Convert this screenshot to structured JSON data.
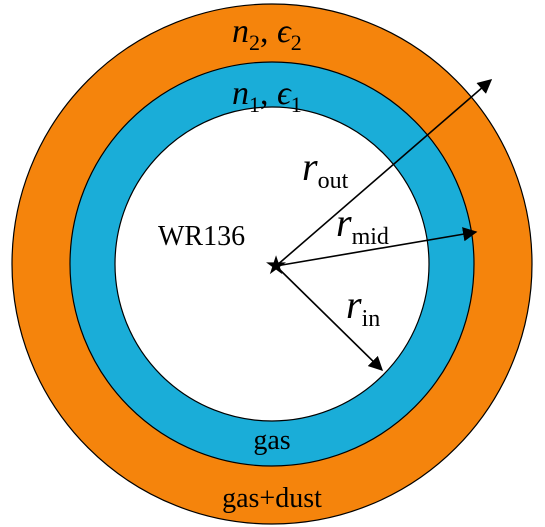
{
  "diagram": {
    "layers": {
      "outer": {
        "material": "gas+dust",
        "params": {
          "n": "n",
          "n_sub": "2",
          "eps": "ϵ",
          "eps_sub": "2",
          "sep": ", "
        },
        "color": "#F5840C"
      },
      "middle": {
        "material": "gas",
        "params": {
          "n": "n",
          "n_sub": "1",
          "eps": "ϵ",
          "eps_sub": "1",
          "sep": ", "
        },
        "color": "#1AADD8"
      },
      "inner": {
        "color": "#FFFFFF"
      }
    },
    "star": {
      "name": "WR136",
      "symbol": "★"
    },
    "radii": {
      "r_out": {
        "symbol": "r",
        "sub": "out"
      },
      "r_mid": {
        "symbol": "r",
        "sub": "mid"
      },
      "r_in": {
        "symbol": "r",
        "sub": "in"
      }
    },
    "outline_color": "#000000"
  }
}
